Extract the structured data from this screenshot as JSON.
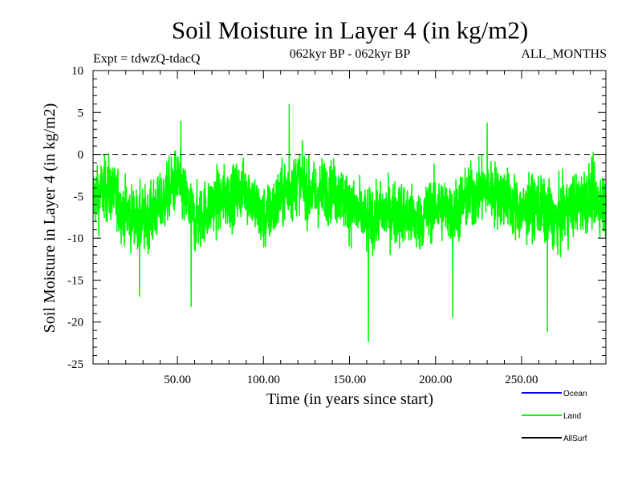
{
  "chart_data": {
    "type": "line",
    "title": "Soil Moisture in Layer 4 (in kg/m2)",
    "subtitle_left": "Expt = tdwzQ-tdacQ",
    "subtitle_center": "062kyr BP - 062kyr BP",
    "subtitle_right": "ALL_MONTHS",
    "xlabel": "Time (in years since start)",
    "ylabel": "Soil Moisture in Layer 4 (in kg/m2)",
    "xlim": [
      1,
      299
    ],
    "ylim": [
      -25,
      10
    ],
    "x_ticks": [
      50,
      100,
      150,
      200,
      250
    ],
    "x_tick_labels": [
      "50.00",
      "100.00",
      "150.00",
      "200.00",
      "250.00"
    ],
    "y_ticks": [
      10,
      5,
      0,
      -5,
      -10,
      -15,
      -20,
      -25
    ],
    "y_tick_labels": [
      "10",
      "5",
      "0",
      "-5",
      "-10",
      "-15",
      "-20",
      "-25"
    ],
    "reference_line": {
      "y": 0,
      "style": "dashed"
    },
    "series": [
      {
        "name": "Ocean",
        "color": "#0000ff",
        "values": []
      },
      {
        "name": "Land",
        "color": "#00ff00",
        "values_note": "monthly noisy series, typical range -15 to 0, mean about -6",
        "x_start": 1,
        "x_end": 299,
        "anchors_x": [
          1,
          10,
          20,
          30,
          40,
          50,
          60,
          70,
          80,
          90,
          100,
          110,
          120,
          130,
          140,
          150,
          160,
          170,
          180,
          190,
          200,
          210,
          220,
          230,
          240,
          250,
          260,
          270,
          280,
          290,
          299
        ],
        "anchors_mean": [
          -5,
          -4,
          -7,
          -8,
          -6,
          -3,
          -8,
          -6,
          -5,
          -4,
          -8,
          -5,
          -3,
          -5,
          -4,
          -6,
          -8,
          -7,
          -7,
          -8,
          -6,
          -7,
          -5,
          -4,
          -5,
          -7,
          -6,
          -8,
          -6,
          -5,
          -6
        ],
        "extremes": [
          {
            "x": 115,
            "y": 6
          },
          {
            "x": 161,
            "y": -22.4
          },
          {
            "x": 265,
            "y": -21.2
          },
          {
            "x": 58,
            "y": -18.2
          },
          {
            "x": 52,
            "y": 4
          },
          {
            "x": 210,
            "y": -19.5
          },
          {
            "x": 230,
            "y": 3.8
          },
          {
            "x": 28,
            "y": -17
          }
        ]
      },
      {
        "name": "AllSurf",
        "color": "#000000",
        "values": []
      }
    ],
    "legend_position": "bottom-right"
  }
}
